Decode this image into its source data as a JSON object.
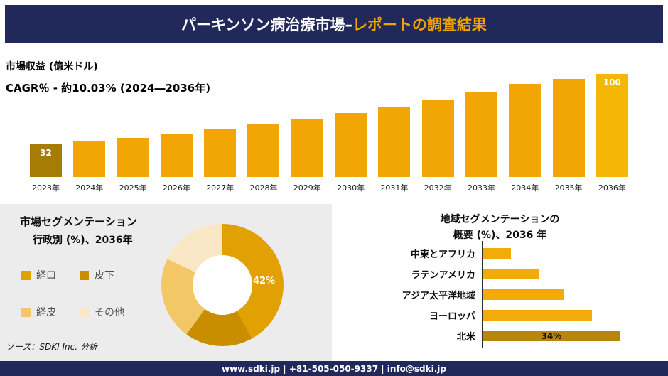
{
  "header": {
    "title_main": "パーキンソン病治療市場–",
    "title_accent": "レポートの調査結果"
  },
  "chart_data": [
    {
      "id": "market-revenue",
      "type": "bar",
      "unit_label": "市場収益 (億米ドル)",
      "cagr_label": "CAGR％ - 約10.03% (2024―2036年)",
      "categories": [
        "2023年",
        "2024年",
        "2025年",
        "2026年",
        "2027年",
        "2028年",
        "2029年",
        "2030年",
        "2031年",
        "2032年",
        "2033年",
        "2034年",
        "2035年",
        "2036年"
      ],
      "values": [
        32,
        35,
        38,
        42,
        46,
        51,
        56,
        62,
        68,
        75,
        82,
        90,
        95,
        100
      ],
      "value_labels": {
        "first": "32",
        "last": "100"
      },
      "ylim": [
        0,
        100
      ],
      "grid": false,
      "colors": {
        "first": "#a67c07",
        "mid": "#f1a606",
        "last": "#f5b606"
      }
    },
    {
      "id": "administration-segmentation",
      "type": "pie",
      "title_line1": "市場セグメンテーション",
      "title_line2": "行政別 (%)、2036年",
      "shown_label": "42%",
      "legend_position": "left",
      "slices": [
        {
          "label": "経口",
          "value": 42,
          "color": "#e2a102"
        },
        {
          "label": "皮下",
          "value": 18,
          "color": "#c98e00"
        },
        {
          "label": "経皮",
          "value": 22,
          "color": "#f3c766"
        },
        {
          "label": "その他",
          "value": 18,
          "color": "#f9e7c5"
        }
      ]
    },
    {
      "id": "region-segmentation",
      "type": "bar",
      "orientation": "horizontal",
      "title_line1": "地域セグメンテーションの",
      "title_line2": "概要 (%)、2036 年",
      "items": [
        {
          "label": "中東とアフリカ",
          "value": 7,
          "color": "#f2ab08"
        },
        {
          "label": "ラテンアメリカ",
          "value": 14,
          "color": "#f2ab08"
        },
        {
          "label": "アジア太平洋地域",
          "value": 20,
          "color": "#f2ab08"
        },
        {
          "label": "ヨーロッパ",
          "value": 27,
          "color": "#f2ab08"
        },
        {
          "label": "北米",
          "value": 34,
          "color": "#b8860b",
          "value_label": "34%"
        }
      ]
    }
  ],
  "source_note": "ソース：SDKI Inc. 分析",
  "footer": {
    "text": "www.sdki.jp | +81-505-050-9337 | info@sdki.jp"
  },
  "colors": {
    "navy": "#20295a",
    "accent_gold": "#f0a202",
    "panel_gray": "#ececec",
    "bar_gold": "#f1a606",
    "bar_dark_gold": "#b8860b"
  }
}
